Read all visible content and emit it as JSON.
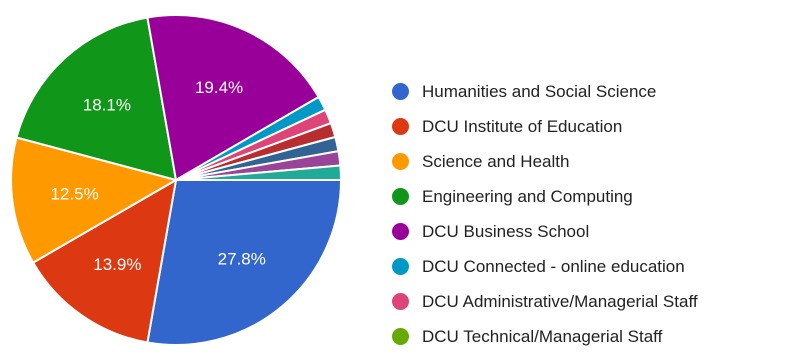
{
  "chart_data": {
    "type": "pie",
    "title": "",
    "slices": [
      {
        "label": "Humanities and Social Science",
        "value": 27.8,
        "color": "#3366cc",
        "data_label": "27.8%"
      },
      {
        "label": "DCU Institute of Education",
        "value": 13.9,
        "color": "#dc3912",
        "data_label": "13.9%"
      },
      {
        "label": "Science and Health",
        "value": 12.5,
        "color": "#ff9900",
        "data_label": "12.5%"
      },
      {
        "label": "Engineering and Computing",
        "value": 18.1,
        "color": "#109618",
        "data_label": "18.1%"
      },
      {
        "label": "DCU Business School",
        "value": 19.4,
        "color": "#990099",
        "data_label": "19.4%"
      },
      {
        "label": "DCU Connected - online education",
        "value": 1.4,
        "color": "#0099c6",
        "data_label": ""
      },
      {
        "label": "DCU Administrative/Managerial Staff",
        "value": 1.4,
        "color": "#dd4477",
        "data_label": ""
      },
      {
        "label": "DCU Technical/Managerial Staff",
        "value": 0.0,
        "color": "#66aa00",
        "data_label": ""
      },
      {
        "label": "",
        "value": 1.4,
        "color": "#b82e2e",
        "data_label": ""
      },
      {
        "label": "",
        "value": 1.4,
        "color": "#316395",
        "data_label": ""
      },
      {
        "label": "",
        "value": 1.4,
        "color": "#994499",
        "data_label": ""
      },
      {
        "label": "",
        "value": 1.4,
        "color": "#22aa99",
        "data_label": ""
      }
    ],
    "legend": {
      "position": "right",
      "items": [
        {
          "label": "Humanities and Social Science",
          "color": "#3366cc"
        },
        {
          "label": "DCU Institute of Education",
          "color": "#dc3912"
        },
        {
          "label": "Science and Health",
          "color": "#ff9900"
        },
        {
          "label": "Engineering and Computing",
          "color": "#109618"
        },
        {
          "label": "DCU Business School",
          "color": "#990099"
        },
        {
          "label": "DCU Connected - online education",
          "color": "#0099c6"
        },
        {
          "label": "DCU Administrative/Managerial Staff",
          "color": "#dd4477"
        },
        {
          "label": "DCU Technical/Managerial Staff",
          "color": "#66aa00"
        }
      ]
    }
  }
}
